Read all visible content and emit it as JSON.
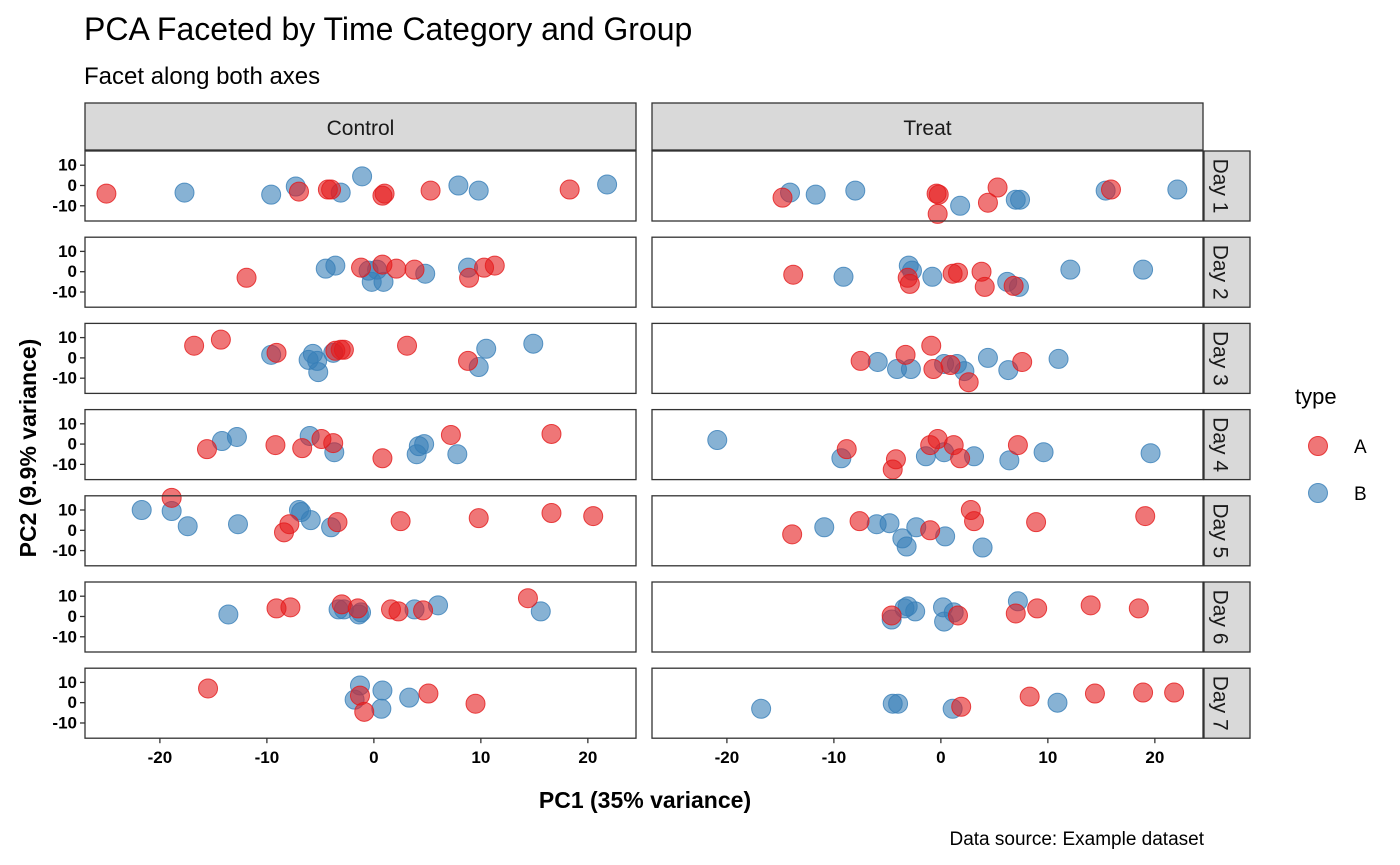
{
  "title": "PCA Faceted by Time Category and Group",
  "subtitle": "Facet along both axes",
  "caption": "Data source: Example dataset",
  "xlabel": "PC1 (35% variance)",
  "ylabel": "PC2 (9.9% variance)",
  "legend": {
    "title": "type",
    "items": [
      {
        "label": "A",
        "color": "#e41a1c"
      },
      {
        "label": "B",
        "color": "#377eb8"
      }
    ]
  },
  "chart_data": {
    "type": "scatter",
    "xlim": [
      -27,
      24.5
    ],
    "ylim": [
      -17.5,
      17
    ],
    "x_ticks": [
      -20,
      -10,
      0,
      10,
      20
    ],
    "y_ticks": [
      10,
      0,
      -10
    ],
    "x_tick_labels": [
      "-20",
      "-10",
      "0",
      "10",
      "20"
    ],
    "y_tick_labels": [
      "10",
      "0",
      "-10"
    ],
    "columns": [
      "Control",
      "Treat"
    ],
    "rows": [
      "Day 1",
      "Day 2",
      "Day 3",
      "Day 4",
      "Day 5",
      "Day 6",
      "Day 7"
    ],
    "grid": false,
    "legend_position": "right",
    "panels": [
      {
        "column": "Control",
        "row": "Day 1",
        "A": [
          [
            -25,
            -4
          ],
          [
            -7,
            -3
          ],
          [
            -4.3,
            -2
          ],
          [
            -4,
            -2
          ],
          [
            0.8,
            -5
          ],
          [
            1,
            -4
          ],
          [
            5.3,
            -2.5
          ],
          [
            18.3,
            -2
          ]
        ],
        "B": [
          [
            -17.7,
            -3.5
          ],
          [
            -9.6,
            -4.5
          ],
          [
            -7.3,
            -0.5
          ],
          [
            -3.1,
            -3.5
          ],
          [
            -1.1,
            4.5
          ],
          [
            7.9,
            0
          ],
          [
            9.8,
            -2.5
          ],
          [
            21.8,
            0.5
          ]
        ]
      },
      {
        "column": "Treat",
        "row": "Day 1",
        "A": [
          [
            -14.8,
            -6
          ],
          [
            -0.4,
            -4
          ],
          [
            -0.2,
            -4.5
          ],
          [
            -0.3,
            -14
          ],
          [
            4.4,
            -8.5
          ],
          [
            5.3,
            -1
          ],
          [
            15.9,
            -2
          ]
        ],
        "B": [
          [
            -14.1,
            -3.5
          ],
          [
            -11.7,
            -4.5
          ],
          [
            -8,
            -2.5
          ],
          [
            1.8,
            -10
          ],
          [
            7,
            -7
          ],
          [
            7.4,
            -7
          ],
          [
            15.4,
            -2.5
          ],
          [
            22.1,
            -2
          ]
        ]
      },
      {
        "column": "Control",
        "row": "Day 2",
        "A": [
          [
            -11.9,
            -3
          ],
          [
            -1.2,
            2
          ],
          [
            0.8,
            3.5
          ],
          [
            2.1,
            1.5
          ],
          [
            3.8,
            1
          ],
          [
            8.9,
            -3
          ],
          [
            10.3,
            2
          ],
          [
            11.3,
            3
          ]
        ],
        "B": [
          [
            -4.5,
            1.5
          ],
          [
            -3.6,
            3
          ],
          [
            -0.5,
            0.5
          ],
          [
            -0.2,
            -5
          ],
          [
            0.3,
            1
          ],
          [
            0.9,
            -5
          ],
          [
            4.8,
            -1
          ],
          [
            8.8,
            2
          ]
        ]
      },
      {
        "column": "Treat",
        "row": "Day 2",
        "A": [
          [
            -13.8,
            -1.5
          ],
          [
            -3.1,
            -3
          ],
          [
            -2.9,
            -6
          ],
          [
            1.1,
            -1
          ],
          [
            1.6,
            -0.5
          ],
          [
            3.8,
            0
          ],
          [
            4.1,
            -7.5
          ],
          [
            6.8,
            -7
          ]
        ],
        "B": [
          [
            -9.1,
            -2.5
          ],
          [
            -3,
            3
          ],
          [
            -2.7,
            0.5
          ],
          [
            -0.8,
            -2.5
          ],
          [
            6.2,
            -5
          ],
          [
            7.3,
            -7.5
          ],
          [
            12.1,
            1
          ],
          [
            18.9,
            1
          ]
        ]
      },
      {
        "column": "Control",
        "row": "Day 3",
        "A": [
          [
            -16.8,
            6
          ],
          [
            -14.3,
            9
          ],
          [
            -9.1,
            2.5
          ],
          [
            -3.6,
            3.5
          ],
          [
            -3.1,
            4
          ],
          [
            -2.8,
            4
          ],
          [
            3.1,
            6
          ],
          [
            8.8,
            -1.5
          ]
        ],
        "B": [
          [
            -9.6,
            1.5
          ],
          [
            -6.1,
            -1
          ],
          [
            -5.7,
            2
          ],
          [
            -5.3,
            -1.5
          ],
          [
            -5.2,
            -7
          ],
          [
            -3.8,
            2.5
          ],
          [
            9.8,
            -4.5
          ],
          [
            10.5,
            4.5
          ],
          [
            14.9,
            7
          ]
        ]
      },
      {
        "column": "Treat",
        "row": "Day 3",
        "A": [
          [
            -7.5,
            -1.5
          ],
          [
            -3.3,
            1.5
          ],
          [
            -0.9,
            6
          ],
          [
            -0.7,
            -5.5
          ],
          [
            0.9,
            -3.5
          ],
          [
            2.6,
            -12
          ],
          [
            7.6,
            -2
          ]
        ],
        "B": [
          [
            -5.9,
            -2
          ],
          [
            -4.1,
            -5.5
          ],
          [
            -2.8,
            -5.5
          ],
          [
            0.3,
            -3
          ],
          [
            1.5,
            -3
          ],
          [
            2.2,
            -6.5
          ],
          [
            4.4,
            0
          ],
          [
            6.3,
            -6
          ],
          [
            11,
            -0.5
          ]
        ]
      },
      {
        "column": "Control",
        "row": "Day 4",
        "A": [
          [
            -15.6,
            -2.5
          ],
          [
            -9.2,
            -0.5
          ],
          [
            -6.7,
            -2
          ],
          [
            -4.9,
            2.5
          ],
          [
            -3.8,
            0.5
          ],
          [
            0.8,
            -7
          ],
          [
            7.2,
            4.5
          ],
          [
            16.6,
            5
          ]
        ],
        "B": [
          [
            -14.2,
            1.5
          ],
          [
            -12.8,
            3.5
          ],
          [
            -6,
            4
          ],
          [
            -3.7,
            -4
          ],
          [
            4,
            -5
          ],
          [
            4.2,
            -1
          ],
          [
            4.7,
            0
          ],
          [
            7.8,
            -5
          ]
        ]
      },
      {
        "column": "Treat",
        "row": "Day 4",
        "A": [
          [
            -8.8,
            -2.5
          ],
          [
            -4.2,
            -7.5
          ],
          [
            -4.5,
            -12.5
          ],
          [
            -1,
            -0.5
          ],
          [
            -0.3,
            2.5
          ],
          [
            1.2,
            -0.5
          ],
          [
            1.8,
            -7
          ],
          [
            7.2,
            -0.5
          ]
        ],
        "B": [
          [
            -20.9,
            2
          ],
          [
            -9.3,
            -7
          ],
          [
            -1.4,
            -6
          ],
          [
            0.3,
            -4
          ],
          [
            3.1,
            -6
          ],
          [
            6.4,
            -8
          ],
          [
            9.6,
            -4
          ],
          [
            19.6,
            -4.5
          ]
        ]
      },
      {
        "column": "Control",
        "row": "Day 5",
        "A": [
          [
            -18.9,
            16
          ],
          [
            -8.4,
            -1
          ],
          [
            -7.9,
            3
          ],
          [
            -3.4,
            4
          ],
          [
            2.5,
            4.5
          ],
          [
            9.8,
            6
          ],
          [
            16.6,
            8.5
          ],
          [
            20.5,
            7
          ]
        ],
        "B": [
          [
            -21.7,
            10
          ],
          [
            -18.9,
            9.5
          ],
          [
            -17.4,
            2
          ],
          [
            -12.7,
            3
          ],
          [
            -7,
            10
          ],
          [
            -6.8,
            9
          ],
          [
            -5.9,
            5
          ],
          [
            -4,
            1.5
          ]
        ]
      },
      {
        "column": "Treat",
        "row": "Day 5",
        "A": [
          [
            -13.9,
            -2
          ],
          [
            -7.6,
            4.5
          ],
          [
            -1,
            0
          ],
          [
            2.8,
            10
          ],
          [
            3.1,
            4.5
          ],
          [
            8.9,
            4
          ],
          [
            19.1,
            7
          ]
        ],
        "B": [
          [
            -10.9,
            1.5
          ],
          [
            -6,
            3
          ],
          [
            -4.8,
            3.5
          ],
          [
            -3.6,
            -4
          ],
          [
            -3.2,
            -8
          ],
          [
            -2.3,
            1.5
          ],
          [
            0.4,
            -3
          ],
          [
            3.9,
            -8.5
          ]
        ]
      },
      {
        "column": "Control",
        "row": "Day 6",
        "A": [
          [
            -9.1,
            4
          ],
          [
            -7.8,
            4.5
          ],
          [
            -3,
            6
          ],
          [
            -1.5,
            4
          ],
          [
            1.6,
            3.5
          ],
          [
            2.3,
            2.5
          ],
          [
            4.6,
            3
          ],
          [
            14.4,
            9
          ]
        ],
        "B": [
          [
            -13.6,
            1
          ],
          [
            -3.3,
            3.5
          ],
          [
            -2.8,
            3.5
          ],
          [
            -1.4,
            1
          ],
          [
            -1.2,
            2
          ],
          [
            3.8,
            3.5
          ],
          [
            6,
            5.5
          ],
          [
            15.6,
            2.5
          ]
        ]
      },
      {
        "column": "Treat",
        "row": "Day 6",
        "A": [
          [
            -4.6,
            0.5
          ],
          [
            1.6,
            0.5
          ],
          [
            7,
            1.5
          ],
          [
            9,
            4
          ],
          [
            14,
            5.5
          ],
          [
            18.5,
            4
          ]
        ],
        "B": [
          [
            -4.6,
            -1.5
          ],
          [
            -3.4,
            4
          ],
          [
            -3.1,
            5
          ],
          [
            -2.4,
            2.5
          ],
          [
            0.2,
            4.5
          ],
          [
            0.3,
            -2.5
          ],
          [
            1.2,
            2
          ],
          [
            7.2,
            7.5
          ]
        ]
      },
      {
        "column": "Control",
        "row": "Day 7",
        "A": [
          [
            -15.5,
            7
          ],
          [
            -1.3,
            3.5
          ],
          [
            -0.9,
            -4.5
          ],
          [
            5.1,
            4.5
          ],
          [
            9.5,
            -0.5
          ]
        ],
        "B": [
          [
            -1.3,
            8.5
          ],
          [
            -1.8,
            1.5
          ],
          [
            0.8,
            6
          ],
          [
            0.7,
            -3
          ],
          [
            3.3,
            2.5
          ]
        ]
      },
      {
        "column": "Treat",
        "row": "Day 7",
        "A": [
          [
            1.9,
            -2
          ],
          [
            8.3,
            3
          ],
          [
            14.4,
            4.5
          ],
          [
            18.9,
            5
          ],
          [
            21.8,
            5
          ]
        ],
        "B": [
          [
            -16.8,
            -3
          ],
          [
            -4.5,
            -0.5
          ],
          [
            -4,
            -0.5
          ],
          [
            1.1,
            -3
          ],
          [
            10.9,
            0
          ]
        ]
      }
    ]
  }
}
